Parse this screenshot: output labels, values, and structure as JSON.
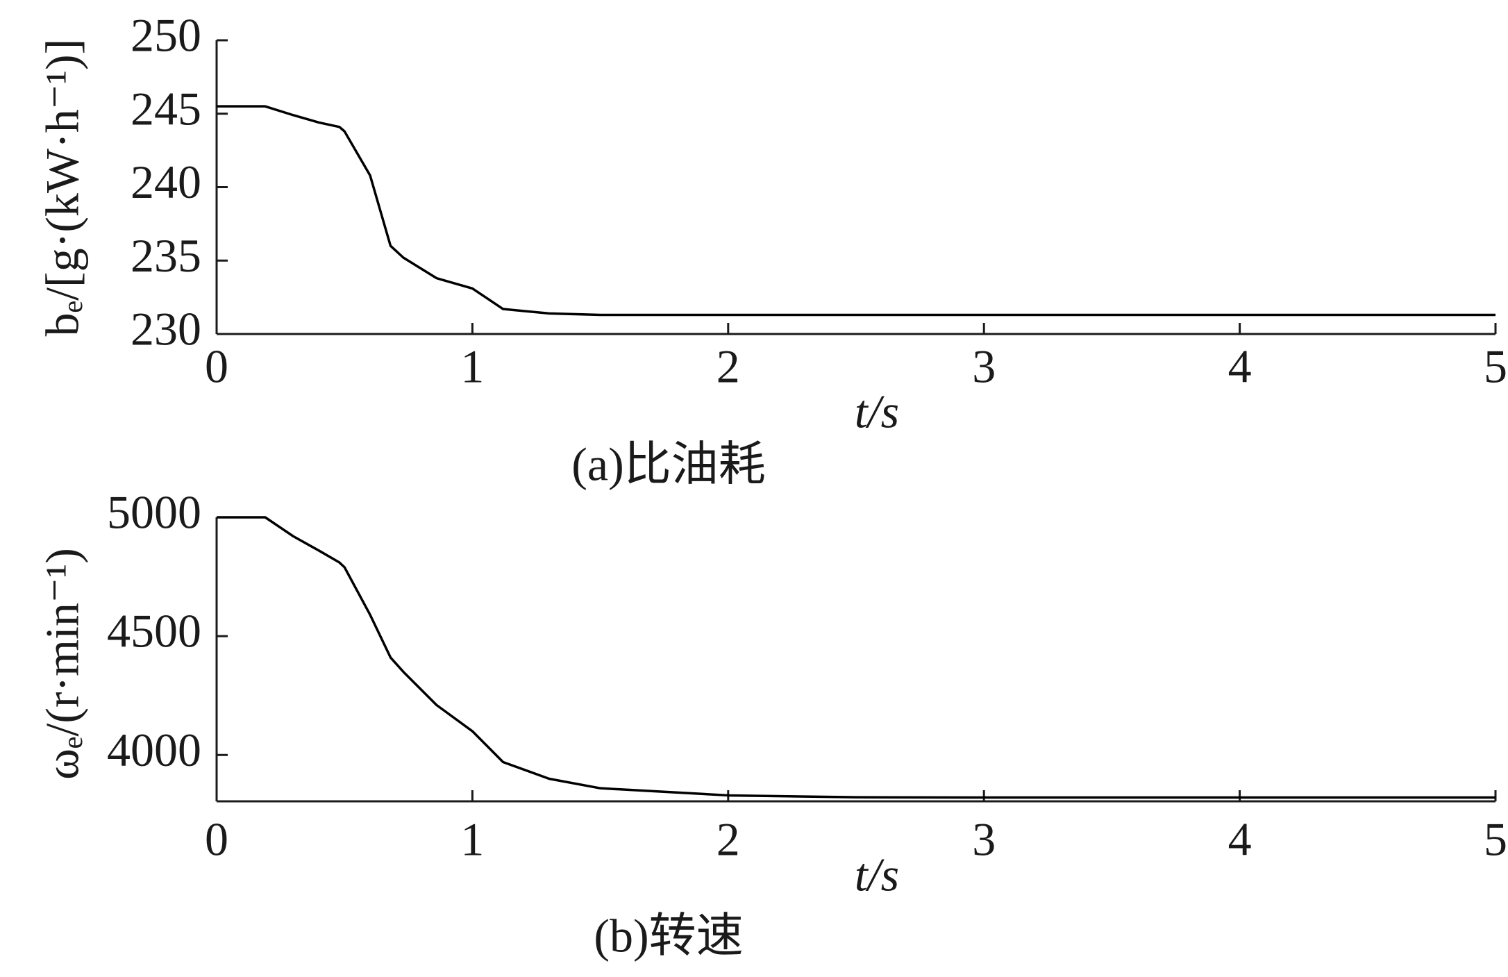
{
  "chart_data": [
    {
      "type": "line",
      "caption": "(a)比油耗",
      "x_label": "t/s",
      "y_label": "bₑ/[g·(kW·h⁻¹)]",
      "x": [
        0,
        0.19,
        0.3,
        0.4,
        0.48,
        0.5,
        0.6,
        0.68,
        0.73,
        0.86,
        1.0,
        1.12,
        1.3,
        1.5,
        2,
        2.5,
        3,
        5
      ],
      "series": [
        {
          "color": "#000000",
          "values": [
            245.5,
            245.5,
            244.9,
            244.4,
            244.1,
            243.8,
            240.8,
            236.0,
            235.2,
            233.8,
            233.1,
            231.7,
            231.4,
            231.3,
            231.3,
            231.3,
            231.3,
            231.3
          ]
        }
      ],
      "xlim": [
        0,
        5
      ],
      "xticks": [
        0,
        1,
        2,
        3,
        4,
        5
      ],
      "ylim": [
        230,
        250
      ],
      "yticks": [
        230,
        235,
        240,
        245,
        250
      ],
      "grid": false
    },
    {
      "type": "line",
      "caption": "(b)转速",
      "x_label": "t/s",
      "y_label": "ωₑ/(r·min⁻¹)",
      "x": [
        0,
        0.19,
        0.3,
        0.4,
        0.48,
        0.5,
        0.6,
        0.68,
        0.73,
        0.86,
        1.0,
        1.12,
        1.3,
        1.5,
        2,
        2.5,
        3,
        5
      ],
      "series": [
        {
          "color": "#000000",
          "values": [
            5000,
            5000,
            4920,
            4860,
            4810,
            4790,
            4590,
            4410,
            4350,
            4210,
            4100,
            3970,
            3900,
            3860,
            3830,
            3822,
            3821,
            3821
          ]
        }
      ],
      "xlim": [
        0,
        5
      ],
      "xticks": [
        0,
        1,
        2,
        3,
        4,
        5
      ],
      "ylim": [
        3805,
        5000
      ],
      "yticks": [
        4000,
        4500,
        5000
      ],
      "grid": false
    }
  ]
}
